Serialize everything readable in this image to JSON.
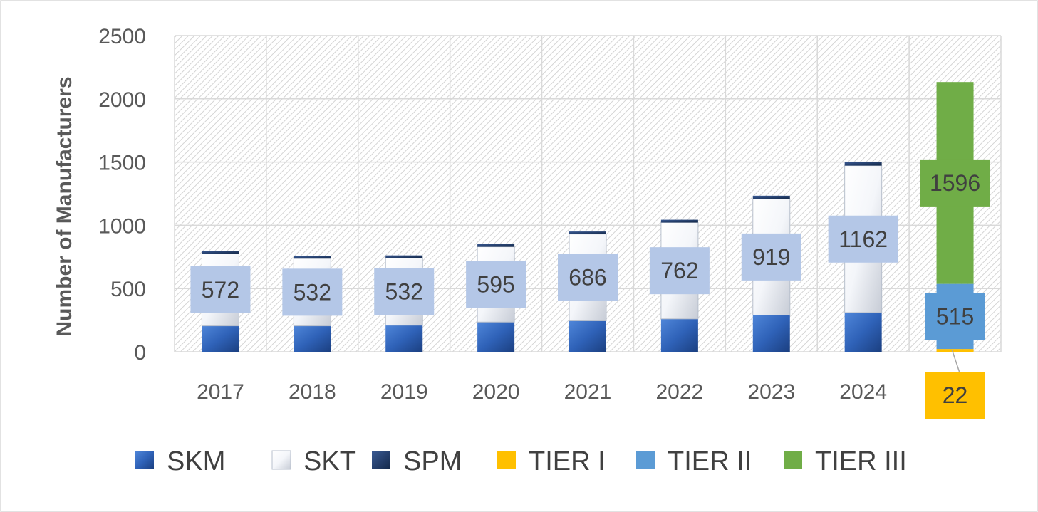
{
  "chart_data": {
    "type": "bar",
    "stacked": true,
    "title": "",
    "xlabel": "",
    "ylabel": "Number of Manufacturers",
    "ylim": [
      0,
      2500
    ],
    "yticks": [
      0,
      500,
      1000,
      1500,
      2000,
      2500
    ],
    "grid": true,
    "legend_position": "bottom",
    "categories": [
      "2017",
      "2018",
      "2019",
      "2020",
      "2021",
      "2022",
      "2023",
      "2024",
      ""
    ],
    "series": [
      {
        "name": "SKM",
        "color": "#2F62B8",
        "values": [
          205,
          205,
          210,
          235,
          245,
          260,
          290,
          310,
          0
        ]
      },
      {
        "name": "SKT",
        "color": "#EEF2F8",
        "values": [
          572,
          532,
          532,
          595,
          686,
          762,
          919,
          1162,
          0
        ]
      },
      {
        "name": "SPM",
        "color": "#1F3864",
        "values": [
          22,
          18,
          20,
          25,
          20,
          22,
          25,
          30,
          0
        ]
      },
      {
        "name": "TIER I",
        "color": "#FFC000",
        "values": [
          0,
          0,
          0,
          0,
          0,
          0,
          0,
          0,
          22
        ]
      },
      {
        "name": "TIER II",
        "color": "#5B9BD5",
        "values": [
          0,
          0,
          0,
          0,
          0,
          0,
          0,
          0,
          515
        ]
      },
      {
        "name": "TIER III",
        "color": "#70AD47",
        "values": [
          0,
          0,
          0,
          0,
          0,
          0,
          0,
          0,
          1596
        ]
      }
    ],
    "data_labels": [
      {
        "category_index": 0,
        "series": "SKT",
        "text": "572"
      },
      {
        "category_index": 1,
        "series": "SKT",
        "text": "532"
      },
      {
        "category_index": 2,
        "series": "SKT",
        "text": "532"
      },
      {
        "category_index": 3,
        "series": "SKT",
        "text": "595"
      },
      {
        "category_index": 4,
        "series": "SKT",
        "text": "686"
      },
      {
        "category_index": 5,
        "series": "SKT",
        "text": "762"
      },
      {
        "category_index": 6,
        "series": "SKT",
        "text": "919"
      },
      {
        "category_index": 7,
        "series": "SKT",
        "text": "1162"
      },
      {
        "category_index": 8,
        "series": "TIER III",
        "text": "1596"
      },
      {
        "category_index": 8,
        "series": "TIER II",
        "text": "515"
      },
      {
        "category_index": 8,
        "series": "TIER I",
        "text": "22",
        "callout": "below"
      }
    ]
  }
}
